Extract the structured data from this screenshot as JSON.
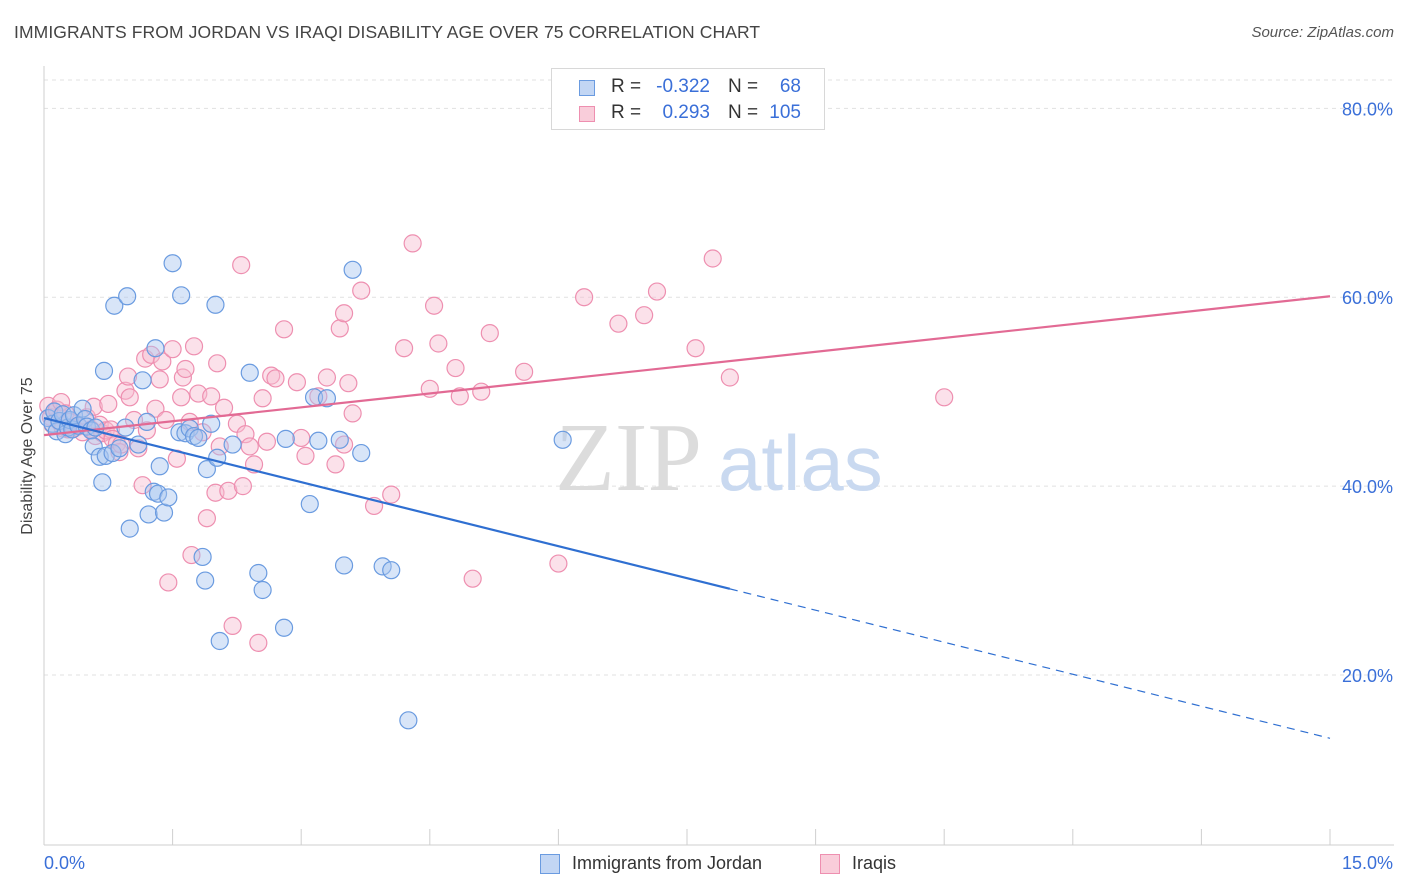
{
  "header": {
    "title": "IMMIGRANTS FROM JORDAN VS IRAQI DISABILITY AGE OVER 75 CORRELATION CHART",
    "source": "Source: ZipAtlas.com"
  },
  "watermark": {
    "part1": "ZIP",
    "part2": "atlas"
  },
  "legend": {
    "rows": [
      {
        "r_label": "R =",
        "r_value": "-0.322",
        "n_label": "N =",
        "n_value": "68"
      },
      {
        "r_label": "R =",
        "r_value": "0.293",
        "n_label": "N =",
        "n_value": "105"
      }
    ]
  },
  "bottom_legend": {
    "items": [
      {
        "label": "Immigrants from Jordan"
      },
      {
        "label": "Iraqis"
      }
    ]
  },
  "colors": {
    "blue_fill": "#a8c6f0",
    "blue_stroke": "#6a9be0",
    "blue_line": "#2f6fd1",
    "pink_fill": "#f7bcd0",
    "pink_stroke": "#ee8fb0",
    "pink_line": "#e26a94",
    "tick_label": "#3a6fd8",
    "grid": "#e1e1e1"
  },
  "chart_data": {
    "type": "scatter",
    "title": "IMMIGRANTS FROM JORDAN VS IRAQI DISABILITY AGE OVER 75 CORRELATION CHART",
    "xlabel": "",
    "ylabel": "Disability Age Over 75",
    "xlim": [
      0,
      15
    ],
    "ylim": [
      2,
      83
    ],
    "x_ticks": [
      {
        "value": 0,
        "label": "0.0%"
      },
      {
        "value": 15,
        "label": "15.0%"
      }
    ],
    "y_ticks": [
      {
        "value": 20,
        "label": "20.0%"
      },
      {
        "value": 40,
        "label": "40.0%"
      },
      {
        "value": 60,
        "label": "60.0%"
      },
      {
        "value": 80,
        "label": "80.0%"
      }
    ],
    "grid": true,
    "legend_position": "top-center",
    "series": [
      {
        "name": "Immigrants from Jordan",
        "color": "blue",
        "r": -0.322,
        "n": 68,
        "trend": {
          "x0": 0,
          "y0": 47.2,
          "x_solid_end": 8.0,
          "x_end": 15.0,
          "y_end": 13.3
        },
        "points": [
          [
            0.05,
            47.2
          ],
          [
            0.1,
            46.6
          ],
          [
            0.12,
            47.9
          ],
          [
            0.15,
            45.8
          ],
          [
            0.18,
            46.9
          ],
          [
            0.22,
            47.6
          ],
          [
            0.25,
            45.5
          ],
          [
            0.28,
            46.2
          ],
          [
            0.3,
            47.0
          ],
          [
            0.33,
            46.0
          ],
          [
            0.35,
            47.5
          ],
          [
            0.4,
            46.4
          ],
          [
            0.45,
            48.2
          ],
          [
            0.48,
            47.1
          ],
          [
            0.5,
            46.3
          ],
          [
            0.55,
            45.9
          ],
          [
            0.58,
            44.2
          ],
          [
            0.6,
            46.2
          ],
          [
            0.65,
            43.1
          ],
          [
            0.68,
            40.4
          ],
          [
            0.7,
            52.2
          ],
          [
            0.72,
            43.2
          ],
          [
            0.8,
            43.5
          ],
          [
            0.82,
            59.1
          ],
          [
            0.88,
            44.0
          ],
          [
            0.95,
            46.2
          ],
          [
            0.97,
            60.1
          ],
          [
            1.0,
            35.5
          ],
          [
            1.1,
            44.4
          ],
          [
            1.15,
            51.2
          ],
          [
            1.2,
            46.8
          ],
          [
            1.22,
            37.0
          ],
          [
            1.28,
            39.4
          ],
          [
            1.3,
            54.6
          ],
          [
            1.33,
            39.2
          ],
          [
            1.35,
            42.1
          ],
          [
            1.4,
            37.2
          ],
          [
            1.45,
            38.8
          ],
          [
            1.5,
            63.6
          ],
          [
            1.58,
            45.7
          ],
          [
            1.6,
            60.2
          ],
          [
            1.65,
            45.6
          ],
          [
            1.7,
            46.1
          ],
          [
            1.75,
            45.3
          ],
          [
            1.8,
            45.1
          ],
          [
            1.85,
            32.5
          ],
          [
            1.88,
            30.0
          ],
          [
            1.9,
            41.8
          ],
          [
            1.95,
            46.6
          ],
          [
            2.0,
            59.2
          ],
          [
            2.02,
            43.0
          ],
          [
            2.05,
            23.6
          ],
          [
            2.2,
            44.4
          ],
          [
            2.4,
            52.0
          ],
          [
            2.5,
            30.8
          ],
          [
            2.55,
            29.0
          ],
          [
            2.8,
            25.0
          ],
          [
            2.82,
            45.0
          ],
          [
            3.1,
            38.1
          ],
          [
            3.15,
            49.4
          ],
          [
            3.2,
            44.8
          ],
          [
            3.3,
            49.3
          ],
          [
            3.45,
            44.9
          ],
          [
            3.5,
            31.6
          ],
          [
            3.6,
            62.9
          ],
          [
            3.7,
            43.5
          ],
          [
            3.95,
            31.5
          ],
          [
            4.05,
            31.1
          ],
          [
            4.25,
            15.2
          ],
          [
            6.05,
            44.9
          ]
        ]
      },
      {
        "name": "Iraqis",
        "color": "pink",
        "r": 0.293,
        "n": 105,
        "trend": {
          "x0": 0,
          "y0": 45.4,
          "x_end": 15.0,
          "y_end": 60.1
        },
        "points": [
          [
            0.05,
            48.5
          ],
          [
            0.08,
            47.3
          ],
          [
            0.1,
            46.5
          ],
          [
            0.12,
            47.9
          ],
          [
            0.15,
            48.1
          ],
          [
            0.18,
            46.8
          ],
          [
            0.2,
            48.9
          ],
          [
            0.22,
            46.1
          ],
          [
            0.25,
            47.7
          ],
          [
            0.28,
            46.0
          ],
          [
            0.3,
            46.8
          ],
          [
            0.35,
            46.1
          ],
          [
            0.4,
            46.3
          ],
          [
            0.45,
            45.7
          ],
          [
            0.5,
            47.3
          ],
          [
            0.55,
            46.0
          ],
          [
            0.58,
            48.4
          ],
          [
            0.6,
            45.3
          ],
          [
            0.65,
            46.5
          ],
          [
            0.68,
            45.6
          ],
          [
            0.72,
            45.9
          ],
          [
            0.75,
            48.7
          ],
          [
            0.78,
            46.0
          ],
          [
            0.8,
            45.0
          ],
          [
            0.85,
            44.5
          ],
          [
            0.88,
            43.6
          ],
          [
            0.9,
            44.4
          ],
          [
            0.95,
            50.1
          ],
          [
            0.98,
            51.6
          ],
          [
            1.0,
            49.4
          ],
          [
            1.05,
            47.0
          ],
          [
            1.1,
            44.0
          ],
          [
            1.15,
            40.1
          ],
          [
            1.18,
            53.5
          ],
          [
            1.2,
            45.9
          ],
          [
            1.25,
            53.9
          ],
          [
            1.3,
            48.2
          ],
          [
            1.35,
            51.3
          ],
          [
            1.38,
            53.2
          ],
          [
            1.42,
            47.0
          ],
          [
            1.45,
            29.8
          ],
          [
            1.5,
            54.5
          ],
          [
            1.55,
            42.9
          ],
          [
            1.6,
            49.4
          ],
          [
            1.62,
            51.5
          ],
          [
            1.65,
            52.4
          ],
          [
            1.7,
            46.8
          ],
          [
            1.72,
            32.7
          ],
          [
            1.75,
            54.8
          ],
          [
            1.8,
            49.8
          ],
          [
            1.85,
            45.7
          ],
          [
            1.9,
            36.6
          ],
          [
            1.95,
            49.5
          ],
          [
            2.0,
            39.3
          ],
          [
            2.02,
            53.0
          ],
          [
            2.05,
            44.2
          ],
          [
            2.1,
            48.3
          ],
          [
            2.15,
            39.5
          ],
          [
            2.2,
            25.2
          ],
          [
            2.25,
            46.6
          ],
          [
            2.3,
            63.4
          ],
          [
            2.32,
            40.0
          ],
          [
            2.35,
            45.5
          ],
          [
            2.4,
            44.2
          ],
          [
            2.45,
            42.3
          ],
          [
            2.5,
            23.4
          ],
          [
            2.55,
            49.3
          ],
          [
            2.6,
            44.7
          ],
          [
            2.65,
            51.7
          ],
          [
            2.7,
            51.4
          ],
          [
            2.8,
            56.6
          ],
          [
            2.95,
            51.0
          ],
          [
            3.0,
            45.1
          ],
          [
            3.05,
            43.2
          ],
          [
            3.2,
            49.5
          ],
          [
            3.3,
            51.5
          ],
          [
            3.4,
            42.3
          ],
          [
            3.45,
            56.7
          ],
          [
            3.5,
            58.3
          ],
          [
            3.55,
            50.9
          ],
          [
            3.6,
            47.7
          ],
          [
            3.7,
            60.7
          ],
          [
            3.85,
            37.9
          ],
          [
            4.05,
            39.1
          ],
          [
            4.2,
            54.6
          ],
          [
            4.3,
            65.7
          ],
          [
            4.5,
            50.3
          ],
          [
            4.55,
            59.1
          ],
          [
            4.6,
            55.1
          ],
          [
            4.8,
            52.5
          ],
          [
            4.85,
            49.5
          ],
          [
            5.0,
            30.2
          ],
          [
            5.1,
            50.0
          ],
          [
            5.2,
            56.2
          ],
          [
            5.6,
            52.1
          ],
          [
            6.0,
            31.8
          ],
          [
            6.3,
            60.0
          ],
          [
            6.7,
            57.2
          ],
          [
            7.0,
            58.1
          ],
          [
            7.15,
            60.6
          ],
          [
            7.6,
            54.6
          ],
          [
            7.8,
            64.1
          ],
          [
            8.0,
            51.5
          ],
          [
            10.5,
            49.4
          ],
          [
            3.5,
            44.4
          ]
        ]
      }
    ]
  }
}
